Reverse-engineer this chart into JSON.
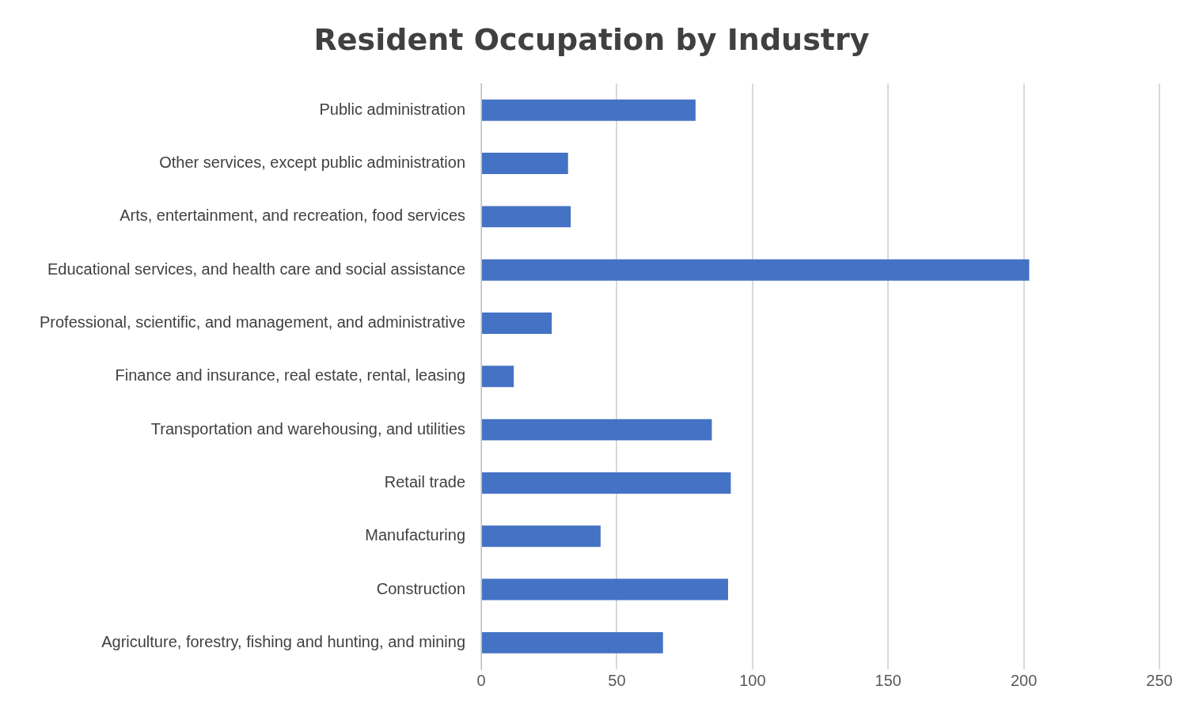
{
  "chart_data": {
    "type": "bar",
    "orientation": "horizontal",
    "title": "Resident Occupation by Industry",
    "categories": [
      "Public administration",
      "Other services, except public administration",
      "Arts, entertainment, and recreation, food services",
      "Educational services, and health care and social assistance",
      "Professional, scientific, and management, and administrative",
      "Finance and insurance, real estate, rental, leasing",
      "Transportation and warehousing, and utilities",
      "Retail trade",
      "Manufacturing",
      "Construction",
      "Agriculture, forestry, fishing and hunting, and mining"
    ],
    "values": [
      79,
      32,
      33,
      202,
      26,
      12,
      85,
      92,
      44,
      91,
      67
    ],
    "color": "#4472c4",
    "xlim": [
      0,
      250
    ],
    "xticks": [
      0,
      50,
      100,
      150,
      200,
      250
    ],
    "grid": "x"
  }
}
